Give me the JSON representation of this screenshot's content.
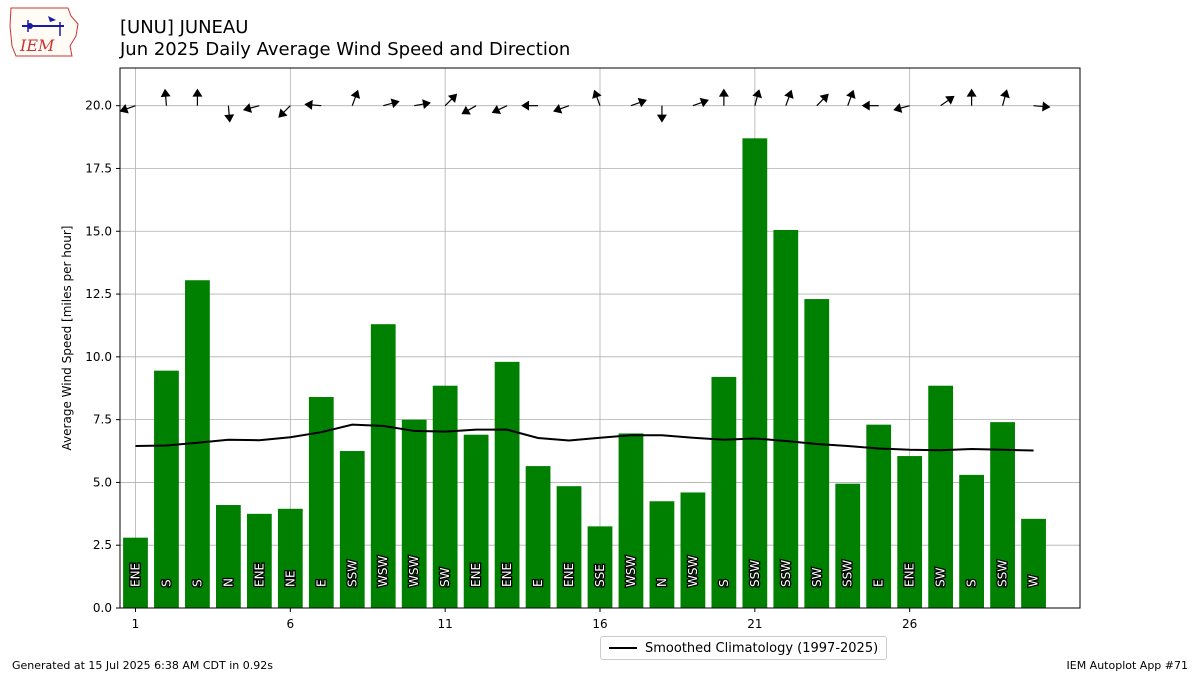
{
  "header": {
    "title_line1": "[UNU] JUNEAU",
    "title_line2": "Jun 2025 Daily Average Wind Speed and Direction",
    "logo_text": "IEM"
  },
  "footer": {
    "generated": "Generated at 15 Jul 2025 6:38 AM CDT in 0.92s",
    "app": "IEM Autoplot App #71"
  },
  "colors": {
    "bar": "#008000",
    "climatology": "#000000",
    "grid": "#b0b0b0"
  },
  "chart_data": {
    "type": "bar",
    "title": "Jun 2025 Daily Average Wind Speed and Direction",
    "ylabel": "Average Wind Speed [miles per hour]",
    "xlim": [
      0.5,
      31.5
    ],
    "ylim": [
      0,
      21.5
    ],
    "xticks": [
      1,
      6,
      11,
      16,
      21,
      26
    ],
    "yticks": [
      0.0,
      2.5,
      5.0,
      7.5,
      10.0,
      12.5,
      15.0,
      17.5,
      20.0
    ],
    "grid": true,
    "legend_position": "bottom-center-outside",
    "days": [
      1,
      2,
      3,
      4,
      5,
      6,
      7,
      8,
      9,
      10,
      11,
      12,
      13,
      14,
      15,
      16,
      17,
      18,
      19,
      20,
      21,
      22,
      23,
      24,
      25,
      26,
      27,
      28,
      29,
      30
    ],
    "wind_speed": [
      2.8,
      9.45,
      13.05,
      4.1,
      3.75,
      3.95,
      8.4,
      6.25,
      11.3,
      7.5,
      8.85,
      6.9,
      9.8,
      5.65,
      4.85,
      3.25,
      6.95,
      4.25,
      4.6,
      9.2,
      18.7,
      15.05,
      12.3,
      4.95,
      7.3,
      6.05,
      8.85,
      5.3,
      7.4,
      3.55
    ],
    "direction_label": [
      "ENE",
      "S",
      "S",
      "N",
      "ENE",
      "NE",
      "E",
      "SSW",
      "WSW",
      "WSW",
      "SW",
      "ENE",
      "ENE",
      "E",
      "ENE",
      "SSE",
      "WSW",
      "N",
      "WSW",
      "S",
      "SSW",
      "SSW",
      "SW",
      "SSW",
      "E",
      "ENE",
      "SW",
      "S",
      "SSW",
      "W"
    ],
    "arrow_direction_deg": [
      70,
      175,
      180,
      355,
      75,
      45,
      95,
      200,
      255,
      260,
      225,
      60,
      65,
      90,
      70,
      160,
      250,
      0,
      250,
      180,
      195,
      200,
      225,
      200,
      90,
      75,
      235,
      180,
      195,
      275
    ],
    "arrow_y": 20.0,
    "climatology": {
      "name": "Smoothed Climatology (1997-2025)",
      "values": [
        6.45,
        6.47,
        6.58,
        6.7,
        6.68,
        6.8,
        7.0,
        7.3,
        7.25,
        7.05,
        7.02,
        7.1,
        7.1,
        6.77,
        6.67,
        6.78,
        6.88,
        6.88,
        6.78,
        6.7,
        6.75,
        6.65,
        6.53,
        6.45,
        6.35,
        6.3,
        6.28,
        6.33,
        6.3,
        6.27
      ]
    }
  }
}
